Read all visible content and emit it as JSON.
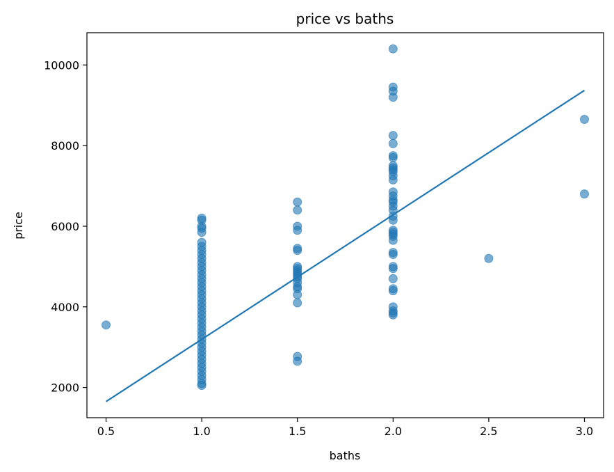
{
  "chart_data": {
    "type": "scatter",
    "title": "price vs baths",
    "xlabel": "baths",
    "ylabel": "price",
    "xlim": [
      0.4,
      3.1
    ],
    "ylim": [
      1250,
      10800
    ],
    "xticks": [
      0.5,
      1.0,
      1.5,
      2.0,
      2.5,
      3.0
    ],
    "xtick_labels": [
      "0.5",
      "1.0",
      "1.5",
      "2.0",
      "2.5",
      "3.0"
    ],
    "yticks": [
      2000,
      4000,
      6000,
      8000,
      10000
    ],
    "ytick_labels": [
      "2000",
      "4000",
      "6000",
      "8000",
      "10000"
    ],
    "grid": false,
    "point_color": "#1f77b4",
    "line_color": "#1f77b4",
    "points": [
      {
        "x": 0.5,
        "y": 3550
      },
      {
        "x": 1.0,
        "y": 6200
      },
      {
        "x": 1.0,
        "y": 6150
      },
      {
        "x": 1.0,
        "y": 6000
      },
      {
        "x": 1.0,
        "y": 5950
      },
      {
        "x": 1.0,
        "y": 5850
      },
      {
        "x": 1.0,
        "y": 5600
      },
      {
        "x": 1.0,
        "y": 5500
      },
      {
        "x": 1.0,
        "y": 5400
      },
      {
        "x": 1.0,
        "y": 5300
      },
      {
        "x": 1.0,
        "y": 5200
      },
      {
        "x": 1.0,
        "y": 5100
      },
      {
        "x": 1.0,
        "y": 5000
      },
      {
        "x": 1.0,
        "y": 4900
      },
      {
        "x": 1.0,
        "y": 4800
      },
      {
        "x": 1.0,
        "y": 4700
      },
      {
        "x": 1.0,
        "y": 4600
      },
      {
        "x": 1.0,
        "y": 4500
      },
      {
        "x": 1.0,
        "y": 4400
      },
      {
        "x": 1.0,
        "y": 4300
      },
      {
        "x": 1.0,
        "y": 4200
      },
      {
        "x": 1.0,
        "y": 4100
      },
      {
        "x": 1.0,
        "y": 4000
      },
      {
        "x": 1.0,
        "y": 3900
      },
      {
        "x": 1.0,
        "y": 3800
      },
      {
        "x": 1.0,
        "y": 3700
      },
      {
        "x": 1.0,
        "y": 3600
      },
      {
        "x": 1.0,
        "y": 3500
      },
      {
        "x": 1.0,
        "y": 3400
      },
      {
        "x": 1.0,
        "y": 3300
      },
      {
        "x": 1.0,
        "y": 3200
      },
      {
        "x": 1.0,
        "y": 3100
      },
      {
        "x": 1.0,
        "y": 3000
      },
      {
        "x": 1.0,
        "y": 2900
      },
      {
        "x": 1.0,
        "y": 2800
      },
      {
        "x": 1.0,
        "y": 2700
      },
      {
        "x": 1.0,
        "y": 2600
      },
      {
        "x": 1.0,
        "y": 2500
      },
      {
        "x": 1.0,
        "y": 2400
      },
      {
        "x": 1.0,
        "y": 2300
      },
      {
        "x": 1.0,
        "y": 2200
      },
      {
        "x": 1.0,
        "y": 2100
      },
      {
        "x": 1.0,
        "y": 2050
      },
      {
        "x": 1.5,
        "y": 6600
      },
      {
        "x": 1.5,
        "y": 6400
      },
      {
        "x": 1.5,
        "y": 6000
      },
      {
        "x": 1.5,
        "y": 5900
      },
      {
        "x": 1.5,
        "y": 5450
      },
      {
        "x": 1.5,
        "y": 5400
      },
      {
        "x": 1.5,
        "y": 5000
      },
      {
        "x": 1.5,
        "y": 4950
      },
      {
        "x": 1.5,
        "y": 4900
      },
      {
        "x": 1.5,
        "y": 4850
      },
      {
        "x": 1.5,
        "y": 4800
      },
      {
        "x": 1.5,
        "y": 4750
      },
      {
        "x": 1.5,
        "y": 4700
      },
      {
        "x": 1.5,
        "y": 4600
      },
      {
        "x": 1.5,
        "y": 4500
      },
      {
        "x": 1.5,
        "y": 4450
      },
      {
        "x": 1.5,
        "y": 4300
      },
      {
        "x": 1.5,
        "y": 4100
      },
      {
        "x": 1.5,
        "y": 2770
      },
      {
        "x": 1.5,
        "y": 2650
      },
      {
        "x": 2.0,
        "y": 10400
      },
      {
        "x": 2.0,
        "y": 9450
      },
      {
        "x": 2.0,
        "y": 9350
      },
      {
        "x": 2.0,
        "y": 9200
      },
      {
        "x": 2.0,
        "y": 8250
      },
      {
        "x": 2.0,
        "y": 8050
      },
      {
        "x": 2.0,
        "y": 7750
      },
      {
        "x": 2.0,
        "y": 7700
      },
      {
        "x": 2.0,
        "y": 7500
      },
      {
        "x": 2.0,
        "y": 7450
      },
      {
        "x": 2.0,
        "y": 7400
      },
      {
        "x": 2.0,
        "y": 7350
      },
      {
        "x": 2.0,
        "y": 7250
      },
      {
        "x": 2.0,
        "y": 7150
      },
      {
        "x": 2.0,
        "y": 6850
      },
      {
        "x": 2.0,
        "y": 6750
      },
      {
        "x": 2.0,
        "y": 6650
      },
      {
        "x": 2.0,
        "y": 6600
      },
      {
        "x": 2.0,
        "y": 6500
      },
      {
        "x": 2.0,
        "y": 6400
      },
      {
        "x": 2.0,
        "y": 6250
      },
      {
        "x": 2.0,
        "y": 6150
      },
      {
        "x": 2.0,
        "y": 5900
      },
      {
        "x": 2.0,
        "y": 5850
      },
      {
        "x": 2.0,
        "y": 5800
      },
      {
        "x": 2.0,
        "y": 5750
      },
      {
        "x": 2.0,
        "y": 5650
      },
      {
        "x": 2.0,
        "y": 5350
      },
      {
        "x": 2.0,
        "y": 5300
      },
      {
        "x": 2.0,
        "y": 5000
      },
      {
        "x": 2.0,
        "y": 4950
      },
      {
        "x": 2.0,
        "y": 4700
      },
      {
        "x": 2.0,
        "y": 4450
      },
      {
        "x": 2.0,
        "y": 4400
      },
      {
        "x": 2.0,
        "y": 4000
      },
      {
        "x": 2.0,
        "y": 3900
      },
      {
        "x": 2.0,
        "y": 3850
      },
      {
        "x": 2.0,
        "y": 3800
      },
      {
        "x": 2.5,
        "y": 5200
      },
      {
        "x": 3.0,
        "y": 8650
      },
      {
        "x": 3.0,
        "y": 6800
      }
    ],
    "fit_line": {
      "x": [
        0.5,
        3.0
      ],
      "y": [
        1650,
        9370
      ]
    }
  }
}
